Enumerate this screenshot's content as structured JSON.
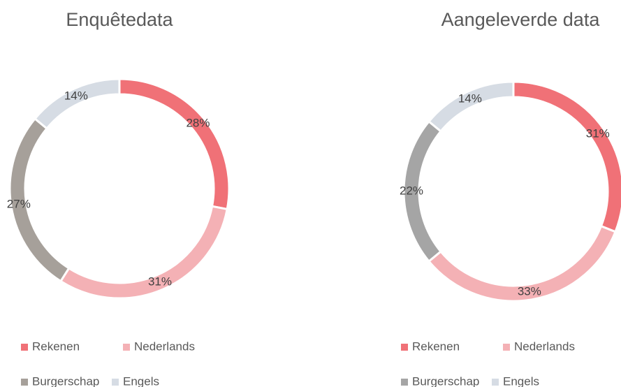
{
  "chart_data": [
    {
      "type": "donut",
      "title": "Enquêtedata",
      "categories": [
        "Rekenen",
        "Nederlands",
        "Burgerschap",
        "Engels"
      ],
      "values": [
        28,
        31,
        27,
        14
      ],
      "value_labels": [
        "28%",
        "31%",
        "27%",
        "14%"
      ],
      "colors": [
        "#f07177",
        "#f4b1b5",
        "#a6a09a",
        "#d6dce4"
      ]
    },
    {
      "type": "donut",
      "title": "Aangeleverde data",
      "categories": [
        "Rekenen",
        "Nederlands",
        "Burgerschap",
        "Engels"
      ],
      "values": [
        31,
        33,
        22,
        14
      ],
      "value_labels": [
        "31%",
        "33%",
        "22%",
        "14%"
      ],
      "colors": [
        "#f07177",
        "#f4b1b5",
        "#a5a5a5",
        "#d6dce4"
      ]
    }
  ]
}
